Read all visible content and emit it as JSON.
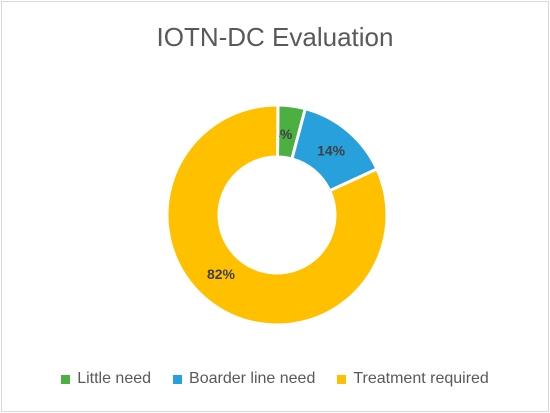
{
  "chart_data": {
    "type": "pie",
    "variant": "donut",
    "title": "IOTN-DC Evaluation",
    "categories": [
      "Little need",
      "Boarder line need",
      "Treatment required"
    ],
    "values": [
      4,
      14,
      82
    ],
    "labels": [
      "4%",
      "14%",
      "82%"
    ],
    "colors": [
      "#4caf42",
      "#27a0dc",
      "#ffc000"
    ],
    "legend_position": "bottom"
  }
}
